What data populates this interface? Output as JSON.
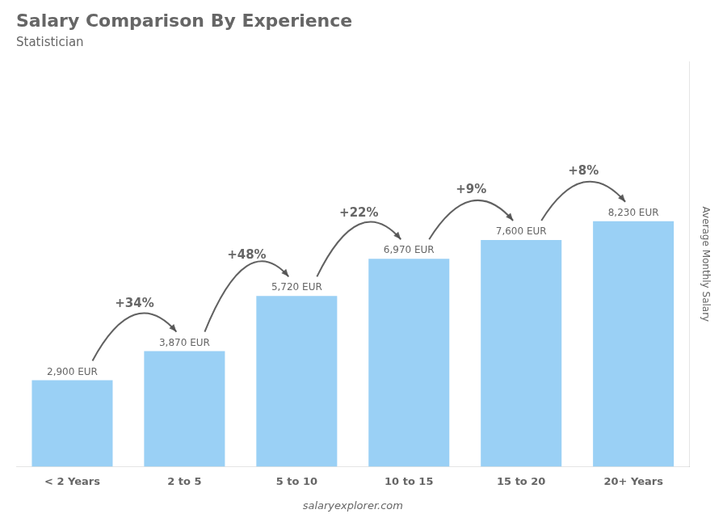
{
  "chart_data": {
    "type": "bar",
    "title": "Salary Comparison By Experience",
    "subtitle": "Statistician",
    "categories": [
      "< 2 Years",
      "2 to 5",
      "5 to 10",
      "10 to 15",
      "15 to 20",
      "20+ Years"
    ],
    "values": [
      2900,
      3870,
      5720,
      6970,
      7600,
      8230
    ],
    "value_labels": [
      "2,900 EUR",
      "3,870 EUR",
      "5,720 EUR",
      "6,970 EUR",
      "7,600 EUR",
      "8,230 EUR"
    ],
    "data_labels": true,
    "annotations": [
      "+34%",
      "+48%",
      "+22%",
      "+9%",
      "+8%"
    ],
    "ylabel": "Average Monthly Salary",
    "source": "salaryexplorer.com",
    "ylim": [
      0,
      13579.5
    ],
    "grid": false,
    "tick_labels": "x"
  }
}
